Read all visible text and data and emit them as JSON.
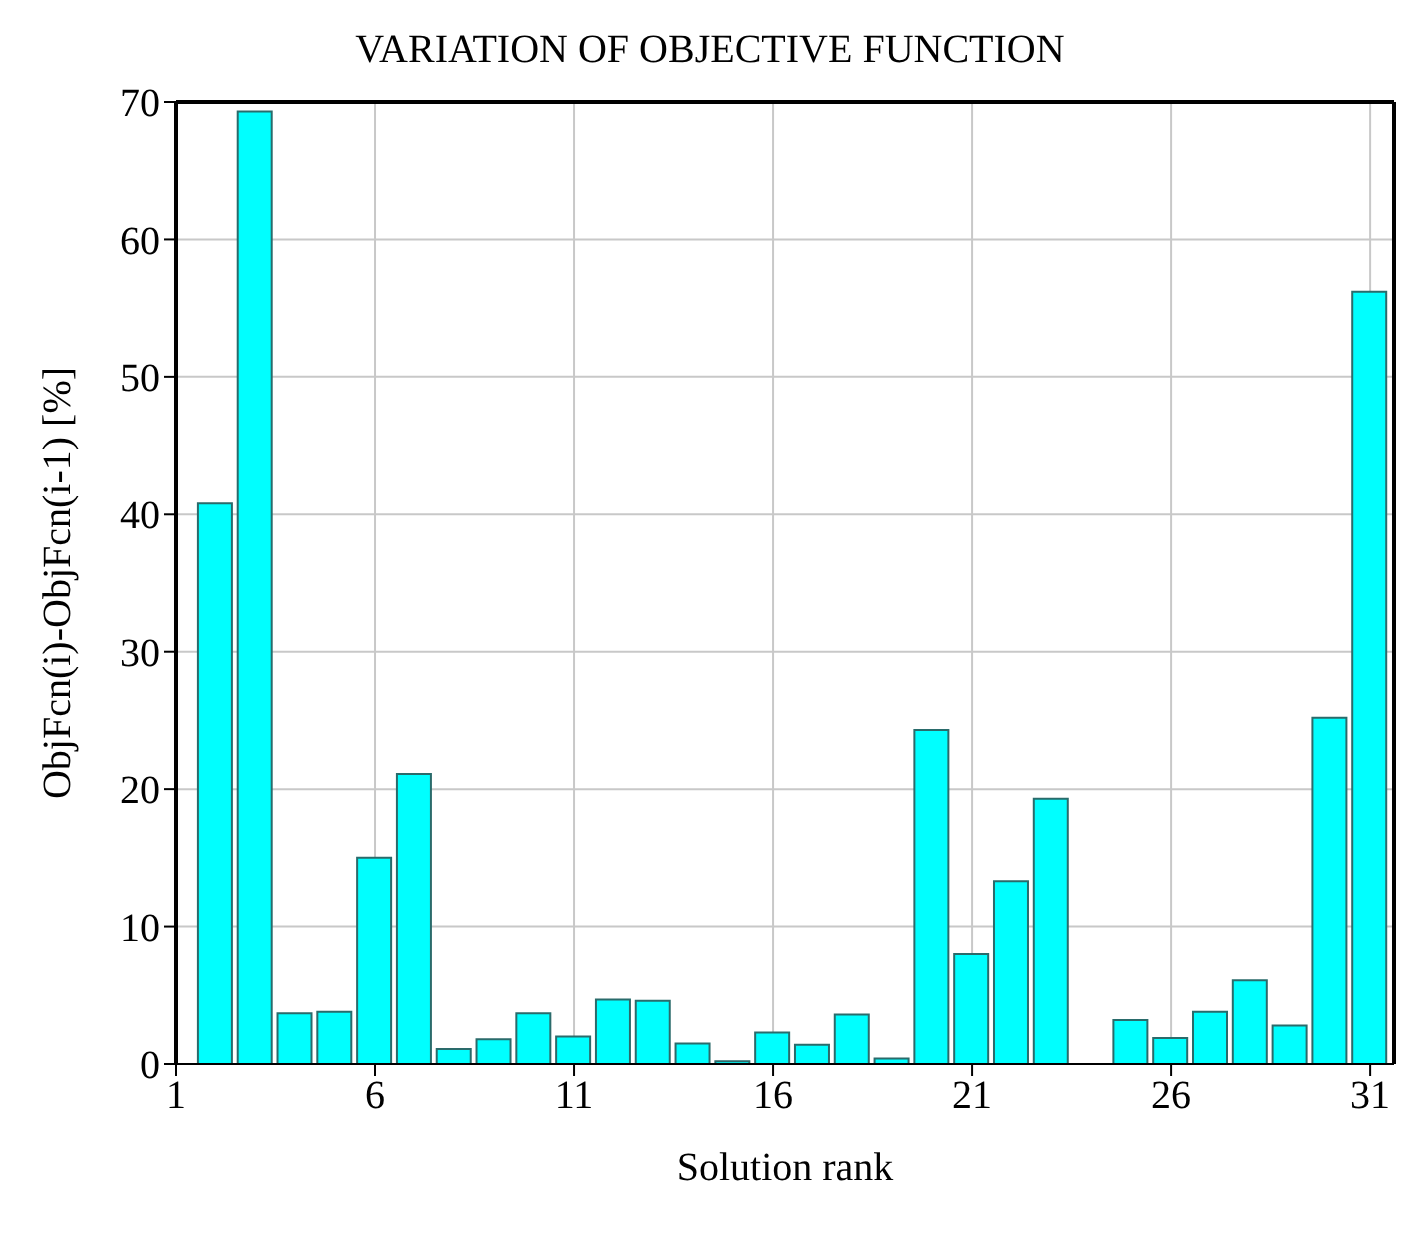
{
  "chart_data": {
    "type": "bar",
    "title": "VARIATION OF OBJECTIVE FUNCTION",
    "xlabel": "Solution rank",
    "ylabel": "ObjFcn(i)-ObjFcn(i-1) [%]",
    "x": [
      2,
      3,
      4,
      5,
      6,
      7,
      8,
      9,
      10,
      11,
      12,
      13,
      14,
      15,
      16,
      17,
      18,
      19,
      20,
      21,
      22,
      23,
      24,
      25,
      26,
      27,
      28,
      29,
      30,
      31
    ],
    "values": [
      40.8,
      69.3,
      3.7,
      3.8,
      15,
      21.1,
      1.1,
      1.8,
      3.7,
      2,
      4.7,
      4.6,
      1.5,
      0.2,
      2.3,
      1.4,
      3.6,
      0.4,
      24.3,
      8,
      13.3,
      19.3,
      0,
      3.2,
      1.9,
      3.8,
      6.1,
      2.8,
      25.2,
      56.2
    ],
    "color": "#00ffff",
    "xlim": [
      1,
      31.6
    ],
    "xticks": [
      1,
      6,
      11,
      16,
      21,
      26,
      31
    ],
    "ylim": [
      0,
      70
    ],
    "yticks": [
      0,
      10,
      20,
      30,
      40,
      50,
      60,
      70
    ],
    "grid": true
  }
}
